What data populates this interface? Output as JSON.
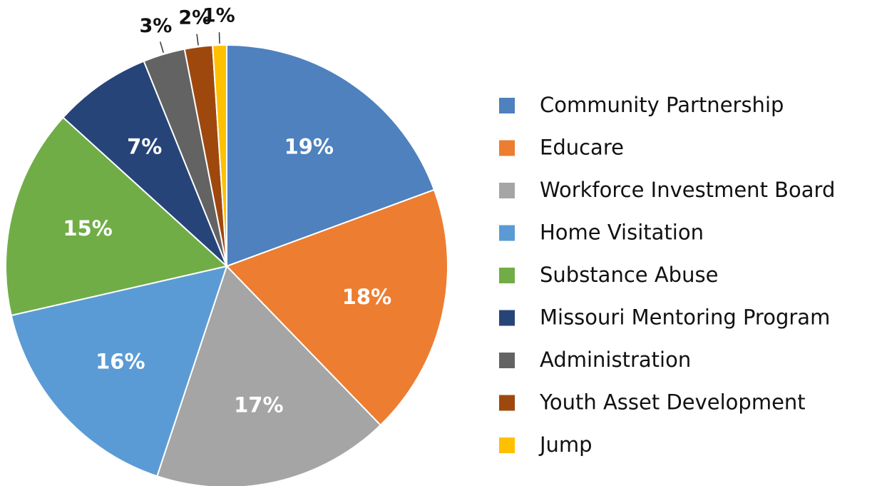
{
  "chart_data": {
    "type": "pie",
    "categories": [
      "Community Partnership",
      "Educare",
      "Workforce Investment Board",
      "Home Visitation",
      "Substance Abuse",
      "Missouri Mentoring Program",
      "Administration",
      "Youth Asset Development",
      "Jump"
    ],
    "values": [
      19,
      18,
      17,
      16,
      15,
      7,
      3,
      2,
      1
    ],
    "value_labels": [
      "19%",
      "18%",
      "17%",
      "16%",
      "15%",
      "7%",
      "3%",
      "2%",
      "1%"
    ],
    "colors": [
      "#4e81bd",
      "#ed7d31",
      "#a5a5a5",
      "#5b9bd5",
      "#70ad47",
      "#264478",
      "#636363",
      "#9e480e",
      "#ffc000"
    ],
    "legend": "right"
  }
}
